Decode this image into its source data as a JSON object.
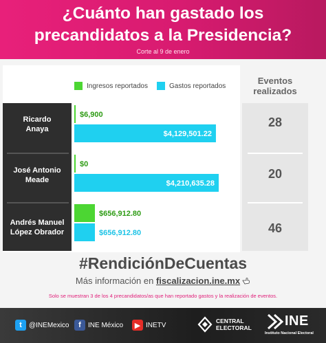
{
  "header": {
    "title_line1": "¿Cuánto han gastado los",
    "title_line2": "precandidatos a la Presidencia?",
    "subtitle": "Corte al 9 de enero"
  },
  "events_header": {
    "line1": "Eventos",
    "line2": "realizados"
  },
  "chart_data": {
    "type": "bar",
    "categories": [
      "Ricardo Anaya",
      "José Antonio Meade",
      "Andrés Manuel López Obrador"
    ],
    "category_lines": [
      [
        "Ricardo",
        "Anaya"
      ],
      [
        "José Antonio",
        "Meade"
      ],
      [
        "Andrés Manuel",
        "López Obrador"
      ]
    ],
    "series": [
      {
        "name": "Ingresos reportados",
        "color": "#4cd633",
        "values": [
          6900,
          0,
          656912.8
        ],
        "labels": [
          "$6,900",
          "$0",
          "$656,912.80"
        ]
      },
      {
        "name": "Gastos reportados",
        "color": "#1fd0f0",
        "values": [
          4129501.22,
          4210635.28,
          656912.8
        ],
        "labels": [
          "$4,129,501.22",
          "$4,210,635.28",
          "$656,912.80"
        ]
      }
    ],
    "events": [
      28,
      20,
      46
    ]
  },
  "hashtag": "#RendiciónDeCuentas",
  "more_info": {
    "prefix": "Más información en ",
    "link": "fiscalizacion.ine.mx"
  },
  "footnote": "Solo se muestran 3 de los 4 precandidatos/as que han reportado gastos y la realización de eventos.",
  "footer": {
    "twitter": "@INEMexico",
    "facebook": "INE México",
    "youtube": "INETV",
    "central_line1": "CENTRAL",
    "central_line2": "ELECTORAL",
    "ine": "INE",
    "ine_sub": "Instituto Nacional Electoral"
  }
}
